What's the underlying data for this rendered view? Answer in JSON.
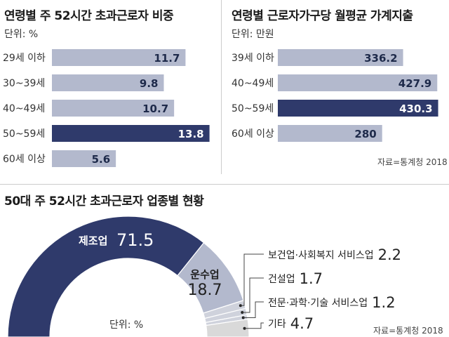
{
  "colors": {
    "highlight": "#2f3a6b",
    "normal": "#b3b9cd",
    "light": "#cfd2dc",
    "other": "#d9d9d9",
    "text_dark": "#1e2a4a"
  },
  "chart_data": [
    {
      "type": "bar",
      "title": "연령별 주 52시간 초과근로자 비중",
      "unit": "단위: %",
      "categories": [
        "29세 이하",
        "30~39세",
        "40~49세",
        "50~59세",
        "60세 이상"
      ],
      "values": [
        11.7,
        9.8,
        10.7,
        13.8,
        5.6
      ],
      "labels": [
        "11.7",
        "9.8",
        "10.7",
        "13.8",
        "5.6"
      ],
      "highlight": "50~59세",
      "xlim": [
        0,
        14.5
      ]
    },
    {
      "type": "bar",
      "title": "연령별 근로자가구당 월평균 가계지출",
      "unit": "단위: 만원",
      "categories": [
        "39세 이하",
        "40~49세",
        "50~59세",
        "60세 이상"
      ],
      "values": [
        336.2,
        427.9,
        430.3,
        280
      ],
      "labels": [
        "336.2",
        "427.9",
        "430.3",
        "280"
      ],
      "highlight": "50~59세",
      "xlim": [
        0,
        450
      ],
      "source": "자료=통계청 2018"
    },
    {
      "type": "pie",
      "title": "50대 주 52시간 초과근로자 업종별 현황",
      "unit": "단위: %",
      "categories": [
        "제조업",
        "운수업",
        "보건업·사회복지 서비스업",
        "건설업",
        "전문·과학·기술 서비스업",
        "기타"
      ],
      "values": [
        71.5,
        18.7,
        2.2,
        1.7,
        1.2,
        4.7
      ],
      "labels": [
        "71.5",
        "18.7",
        "2.2",
        "1.7",
        "1.2",
        "4.7"
      ],
      "source": "자료=통계청 2018"
    }
  ]
}
